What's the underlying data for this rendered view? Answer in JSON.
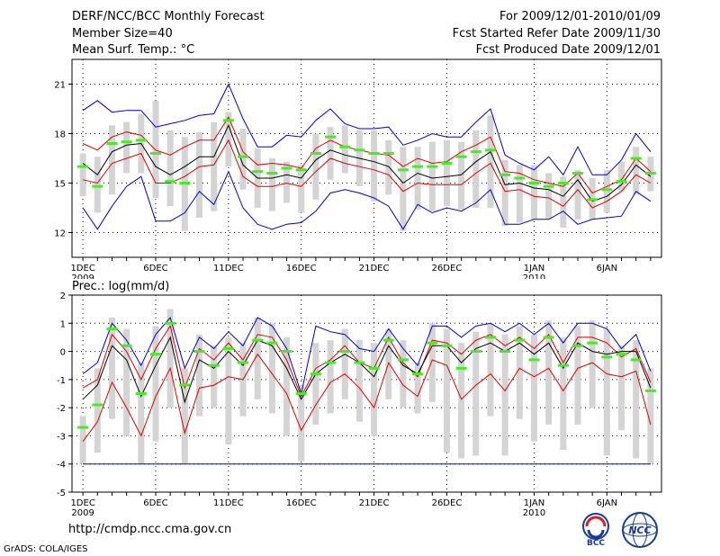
{
  "header": {
    "title": "DERF/NCC/BCC Monthly Forecast",
    "member_size": "Member Size=40",
    "variable": "Mean Surf. Temp.: °C",
    "period": "For 2009/12/01-2010/01/09",
    "refer_date": "Fcst Started Refer Date 2009/11/30",
    "produced_date": "Fcst Produced Date 2009/12/01"
  },
  "footer": {
    "url": "http://cmdp.ncc.cma.gov.cn",
    "credit": "GrADS: COLA/IGES",
    "logo_bcc": "BCC",
    "logo_ncc": "NCC"
  },
  "colors": {
    "max_line": "#0000cc",
    "percentile_line": "#dd0000",
    "mean_line": "#000000",
    "obs_marker": "#44ee22",
    "bar": "#d4d4d4"
  },
  "chart_data": [
    {
      "type": "line",
      "title": "Mean Surf. Temp.: °C",
      "ylim": [
        10.5,
        22.5
      ],
      "yticks": [
        12,
        15,
        18,
        21
      ],
      "x_tick_labels": [
        "1DEC",
        "6DEC",
        "11DEC",
        "16DEC",
        "21DEC",
        "26DEC",
        "1JAN",
        "6JAN"
      ],
      "x_tick_days": [
        1,
        6,
        11,
        16,
        21,
        26,
        32,
        37
      ],
      "x_year_labels": [
        {
          "day": 1,
          "label": "2009"
        },
        {
          "day": 32,
          "label": "2010"
        }
      ],
      "days": [
        1,
        2,
        3,
        4,
        5,
        6,
        7,
        8,
        9,
        10,
        11,
        12,
        13,
        14,
        15,
        16,
        17,
        18,
        19,
        20,
        21,
        22,
        23,
        24,
        25,
        26,
        27,
        28,
        29,
        30,
        31,
        32,
        33,
        34,
        35,
        36,
        37,
        38,
        39,
        40
      ],
      "series": [
        {
          "name": "upper",
          "color": "max_line",
          "values": [
            19.4,
            20.0,
            19.3,
            19.4,
            19.4,
            18.4,
            18.6,
            18.8,
            19.1,
            19.2,
            21.0,
            18.9,
            17.2,
            17.2,
            17.9,
            17.8,
            18.8,
            19.5,
            18.6,
            18.3,
            18.3,
            18.4,
            17.3,
            17.6,
            18.0,
            17.8,
            17.8,
            18.7,
            19.5,
            16.7,
            16.2,
            15.8,
            16.6,
            15.5,
            17.2,
            15.5,
            15.5,
            16.4,
            18.0,
            16.9
          ]
        },
        {
          "name": "p90",
          "color": "percentile_line",
          "values": [
            17.4,
            17.0,
            17.8,
            18.1,
            17.9,
            17.0,
            16.7,
            17.2,
            17.6,
            17.6,
            19.0,
            16.9,
            16.1,
            16.2,
            16.1,
            15.9,
            17.1,
            17.6,
            17.2,
            17.0,
            16.8,
            16.7,
            16.0,
            16.5,
            16.2,
            16.3,
            16.9,
            17.3,
            17.8,
            15.7,
            15.6,
            15.2,
            15.0,
            14.8,
            15.6,
            14.4,
            14.8,
            15.2,
            16.5,
            15.7
          ]
        },
        {
          "name": "mean",
          "color": "mean_line",
          "values": [
            16.2,
            15.5,
            16.9,
            17.3,
            17.4,
            16.0,
            15.5,
            16.0,
            16.6,
            16.6,
            18.5,
            16.1,
            15.3,
            15.3,
            15.5,
            15.3,
            16.4,
            17.0,
            16.7,
            16.5,
            16.3,
            16.0,
            15.0,
            15.6,
            15.3,
            15.4,
            15.5,
            16.3,
            16.9,
            14.9,
            15.0,
            14.7,
            14.6,
            14.2,
            15.2,
            13.9,
            14.2,
            14.9,
            16.1,
            15.4
          ]
        },
        {
          "name": "p10",
          "color": "percentile_line",
          "values": [
            15.2,
            15.0,
            16.2,
            16.5,
            16.8,
            15.0,
            15.0,
            15.4,
            16.0,
            16.1,
            17.6,
            15.4,
            14.8,
            14.8,
            15.0,
            14.8,
            15.7,
            16.5,
            16.2,
            16.0,
            15.8,
            15.5,
            14.5,
            15.0,
            14.9,
            14.9,
            14.9,
            15.6,
            16.2,
            14.5,
            14.6,
            14.2,
            14.1,
            13.6,
            14.6,
            13.5,
            13.9,
            14.5,
            15.5,
            15.0
          ]
        },
        {
          "name": "lower",
          "color": "max_line",
          "values": [
            13.5,
            12.2,
            13.6,
            14.8,
            15.4,
            12.7,
            12.7,
            13.2,
            14.5,
            13.7,
            15.7,
            13.5,
            12.5,
            12.2,
            12.5,
            12.6,
            13.3,
            14.4,
            14.6,
            14.4,
            14.1,
            13.6,
            12.2,
            13.7,
            13.2,
            13.5,
            13.3,
            13.8,
            14.6,
            12.5,
            12.5,
            12.8,
            12.8,
            13.3,
            12.5,
            12.8,
            12.9,
            13.0,
            14.5,
            13.9
          ]
        }
      ],
      "bars": [
        {
          "low": 14.2,
          "high": 16.8
        },
        {
          "low": 13.2,
          "high": 16.6
        },
        {
          "low": 14.3,
          "high": 18.5
        },
        {
          "low": 15.6,
          "high": 18.7
        },
        {
          "low": 15.6,
          "high": 19.2
        },
        {
          "low": 14.1,
          "high": 20.0
        },
        {
          "low": 13.6,
          "high": 18.2
        },
        {
          "low": 12.1,
          "high": 17.8
        },
        {
          "low": 12.9,
          "high": 18.1
        },
        {
          "low": 13.3,
          "high": 18.7
        },
        {
          "low": 16.0,
          "high": 19.3
        },
        {
          "low": 14.6,
          "high": 18.3
        },
        {
          "low": 13.5,
          "high": 17.1
        },
        {
          "low": 13.3,
          "high": 16.5
        },
        {
          "low": 13.8,
          "high": 16.3
        },
        {
          "low": 13.2,
          "high": 16.1
        },
        {
          "low": 14.0,
          "high": 18.0
        },
        {
          "low": 15.2,
          "high": 18.4
        },
        {
          "low": 15.6,
          "high": 18.5
        },
        {
          "low": 14.8,
          "high": 18.2
        },
        {
          "low": 13.9,
          "high": 18.2
        },
        {
          "low": 14.3,
          "high": 17.6
        },
        {
          "low": 12.1,
          "high": 17.2
        },
        {
          "low": 13.4,
          "high": 17.2
        },
        {
          "low": 13.3,
          "high": 17.5
        },
        {
          "low": 13.6,
          "high": 17.6
        },
        {
          "low": 13.4,
          "high": 17.5
        },
        {
          "low": 13.5,
          "high": 18.2
        },
        {
          "low": 13.5,
          "high": 19.1
        },
        {
          "low": 12.4,
          "high": 16.4
        },
        {
          "low": 12.6,
          "high": 16.1
        },
        {
          "low": 12.8,
          "high": 16.1
        },
        {
          "low": 12.8,
          "high": 15.6
        },
        {
          "low": 12.3,
          "high": 15.4
        },
        {
          "low": 12.8,
          "high": 15.8
        },
        {
          "low": 12.8,
          "high": 15.3
        },
        {
          "low": 13.2,
          "high": 15.8
        },
        {
          "low": 14.5,
          "high": 16.3
        },
        {
          "low": 14.3,
          "high": 17.2
        },
        {
          "low": 14.5,
          "high": 16.6
        }
      ],
      "obs": [
        16.0,
        14.8,
        17.4,
        17.5,
        17.6,
        16.8,
        15.1,
        15.0,
        null,
        null,
        18.8,
        16.6,
        15.7,
        15.6,
        15.9,
        15.8,
        16.8,
        17.8,
        17.2,
        17.0,
        16.8,
        16.8,
        15.8,
        16.0,
        16.0,
        16.2,
        16.6,
        16.9,
        17.0,
        15.5,
        15.3,
        15.0,
        14.8,
        15.0,
        15.6,
        14.0,
        14.6,
        15.1,
        16.5,
        15.6
      ]
    },
    {
      "type": "line",
      "title": "Prec.: log(mm/d)",
      "ylim": [
        -5,
        2
      ],
      "yticks": [
        -5,
        -4,
        -3,
        -2,
        -1,
        0,
        1,
        2
      ],
      "x_tick_labels": [
        "1DEC",
        "6DEC",
        "11DEC",
        "16DEC",
        "21DEC",
        "26DEC",
        "1JAN",
        "6JAN"
      ],
      "x_tick_days": [
        1,
        6,
        11,
        16,
        21,
        26,
        32,
        37
      ],
      "x_year_labels": [
        {
          "day": 1,
          "label": "2009"
        },
        {
          "day": 32,
          "label": "2010"
        }
      ],
      "baseline": -4,
      "days": [
        1,
        2,
        3,
        4,
        5,
        6,
        7,
        8,
        9,
        10,
        11,
        12,
        13,
        14,
        15,
        16,
        17,
        18,
        19,
        20,
        21,
        22,
        23,
        24,
        25,
        26,
        27,
        28,
        29,
        30,
        31,
        32,
        33,
        34,
        35,
        36,
        37,
        38,
        39,
        40
      ],
      "series": [
        {
          "name": "upper",
          "color": "max_line",
          "values": [
            -0.8,
            -0.4,
            1.0,
            0.4,
            -0.5,
            0.6,
            1.2,
            -0.6,
            0.5,
            0.1,
            0.7,
            0.2,
            1.2,
            0.9,
            0.1,
            -1.5,
            0.9,
            0.7,
            0.6,
            0.1,
            0.0,
            0.8,
            0.1,
            -0.5,
            0.9,
            0.9,
            0.5,
            0.9,
            1.0,
            0.7,
            1.0,
            0.6,
            1.0,
            0.3,
            1.0,
            1.0,
            0.8,
            0.1,
            0.6,
            -0.7
          ]
        },
        {
          "name": "p90",
          "color": "percentile_line",
          "values": [
            -1.3,
            -1.0,
            0.6,
            0.0,
            -1.0,
            0.1,
            0.9,
            -1.3,
            0.1,
            -0.3,
            0.3,
            -0.3,
            0.6,
            0.5,
            -0.3,
            -1.6,
            -0.6,
            -0.3,
            0.2,
            -0.4,
            -0.6,
            0.5,
            -0.4,
            -0.9,
            0.4,
            0.3,
            -0.1,
            0.4,
            0.6,
            0.2,
            0.5,
            0.1,
            0.6,
            -0.4,
            0.5,
            0.5,
            0.3,
            -0.2,
            0.1,
            -1.1
          ]
        },
        {
          "name": "mean",
          "color": "mean_line",
          "values": [
            -1.7,
            -1.2,
            0.2,
            -0.3,
            -1.6,
            -0.5,
            0.5,
            -1.8,
            -0.3,
            -0.6,
            0.0,
            -0.5,
            0.4,
            0.2,
            -0.6,
            -1.7,
            -0.8,
            -0.4,
            -0.1,
            -0.4,
            -0.9,
            0.2,
            -0.5,
            -0.8,
            0.2,
            0.2,
            -0.4,
            0.1,
            0.3,
            0.0,
            0.3,
            -0.1,
            0.3,
            -0.6,
            0.3,
            0.0,
            -0.1,
            0.0,
            0.0,
            -1.3
          ]
        },
        {
          "name": "p10",
          "color": "percentile_line",
          "values": [
            -3.2,
            -2.5,
            -1.1,
            -2.0,
            -3.0,
            -1.6,
            -0.6,
            -2.9,
            -1.3,
            -1.2,
            -0.9,
            -1.0,
            -0.1,
            -0.8,
            -1.5,
            -2.8,
            -1.9,
            -1.1,
            -0.8,
            -1.3,
            -2.0,
            -0.4,
            -1.2,
            -1.6,
            -0.3,
            -0.5,
            -1.7,
            -1.2,
            -0.8,
            -1.4,
            -0.6,
            -0.9,
            -0.6,
            -1.4,
            -0.6,
            -0.4,
            -0.8,
            -0.9,
            -0.7,
            -2.6
          ]
        },
        {
          "name": "lower",
          "color": "max_line",
          "values": [
            -4.0,
            -4.0,
            -4.0,
            -4.0,
            -4.0,
            -4.0,
            -4.0,
            -4.0,
            -4.0,
            -4.0,
            -4.0,
            -4.0,
            -4.0,
            -4.0,
            -4.0,
            -4.0,
            -4.0,
            -4.0,
            -4.0,
            -4.0,
            -4.0,
            -4.0,
            -4.0,
            -4.0,
            -4.0,
            -4.0,
            -4.0,
            -4.0,
            -4.0,
            -4.0,
            -4.0,
            -4.0,
            -4.0,
            -4.0,
            -4.0,
            -4.0,
            -4.0,
            -4.0,
            -4.0,
            -4.0
          ]
        }
      ],
      "bars": [
        {
          "low": -4.0,
          "high": -2.3
        },
        {
          "low": -3.6,
          "high": -0.6
        },
        {
          "low": -2.4,
          "high": 1.2
        },
        {
          "low": -3.0,
          "high": 0.8
        },
        {
          "low": -4.0,
          "high": -0.4
        },
        {
          "low": -3.2,
          "high": 0.9
        },
        {
          "low": -2.0,
          "high": 1.5
        },
        {
          "low": -4.0,
          "high": -0.6
        },
        {
          "low": -2.3,
          "high": 0.6
        },
        {
          "low": -2.0,
          "high": 0.2
        },
        {
          "low": -3.3,
          "high": 0.5
        },
        {
          "low": -2.3,
          "high": 0.3
        },
        {
          "low": -1.7,
          "high": 1.2
        },
        {
          "low": -2.2,
          "high": 1.0
        },
        {
          "low": -3.0,
          "high": 0.5
        },
        {
          "low": -3.9,
          "high": -1.2
        },
        {
          "low": -2.6,
          "high": 0.3
        },
        {
          "low": -2.2,
          "high": 0.4
        },
        {
          "low": -1.7,
          "high": 0.8
        },
        {
          "low": -2.5,
          "high": 0.4
        },
        {
          "low": -3.0,
          "high": 0.3
        },
        {
          "low": -1.7,
          "high": 0.8
        },
        {
          "low": -2.0,
          "high": 0.4
        },
        {
          "low": -2.2,
          "high": -0.4
        },
        {
          "low": -1.8,
          "high": 1.0
        },
        {
          "low": -3.6,
          "high": 0.8
        },
        {
          "low": -3.8,
          "high": 0.3
        },
        {
          "low": -3.7,
          "high": 0.7
        },
        {
          "low": -2.3,
          "high": 1.0
        },
        {
          "low": -3.7,
          "high": 0.6
        },
        {
          "low": -2.4,
          "high": 0.9
        },
        {
          "low": -3.2,
          "high": 0.6
        },
        {
          "low": -2.6,
          "high": 1.1
        },
        {
          "low": -3.5,
          "high": 0.5
        },
        {
          "low": -2.6,
          "high": 0.9
        },
        {
          "low": -2.0,
          "high": 1.1
        },
        {
          "low": -3.7,
          "high": 0.8
        },
        {
          "low": -2.8,
          "high": 0.2
        },
        {
          "low": -3.8,
          "high": 0.4
        },
        {
          "low": -4.0,
          "high": -0.6
        }
      ],
      "obs": [
        -2.7,
        -1.9,
        0.8,
        0.2,
        -1.5,
        -0.1,
        1.0,
        -1.2,
        0.0,
        -0.5,
        0.1,
        -0.4,
        0.4,
        0.3,
        0.0,
        -1.5,
        -0.8,
        -0.4,
        0.0,
        -0.4,
        -0.6,
        0.4,
        -0.3,
        -0.8,
        0.3,
        0.2,
        -0.6,
        0.0,
        0.5,
        0.0,
        0.4,
        -0.3,
        0.5,
        -0.5,
        0.2,
        0.3,
        -0.2,
        -0.1,
        -0.3,
        -1.4
      ]
    }
  ]
}
